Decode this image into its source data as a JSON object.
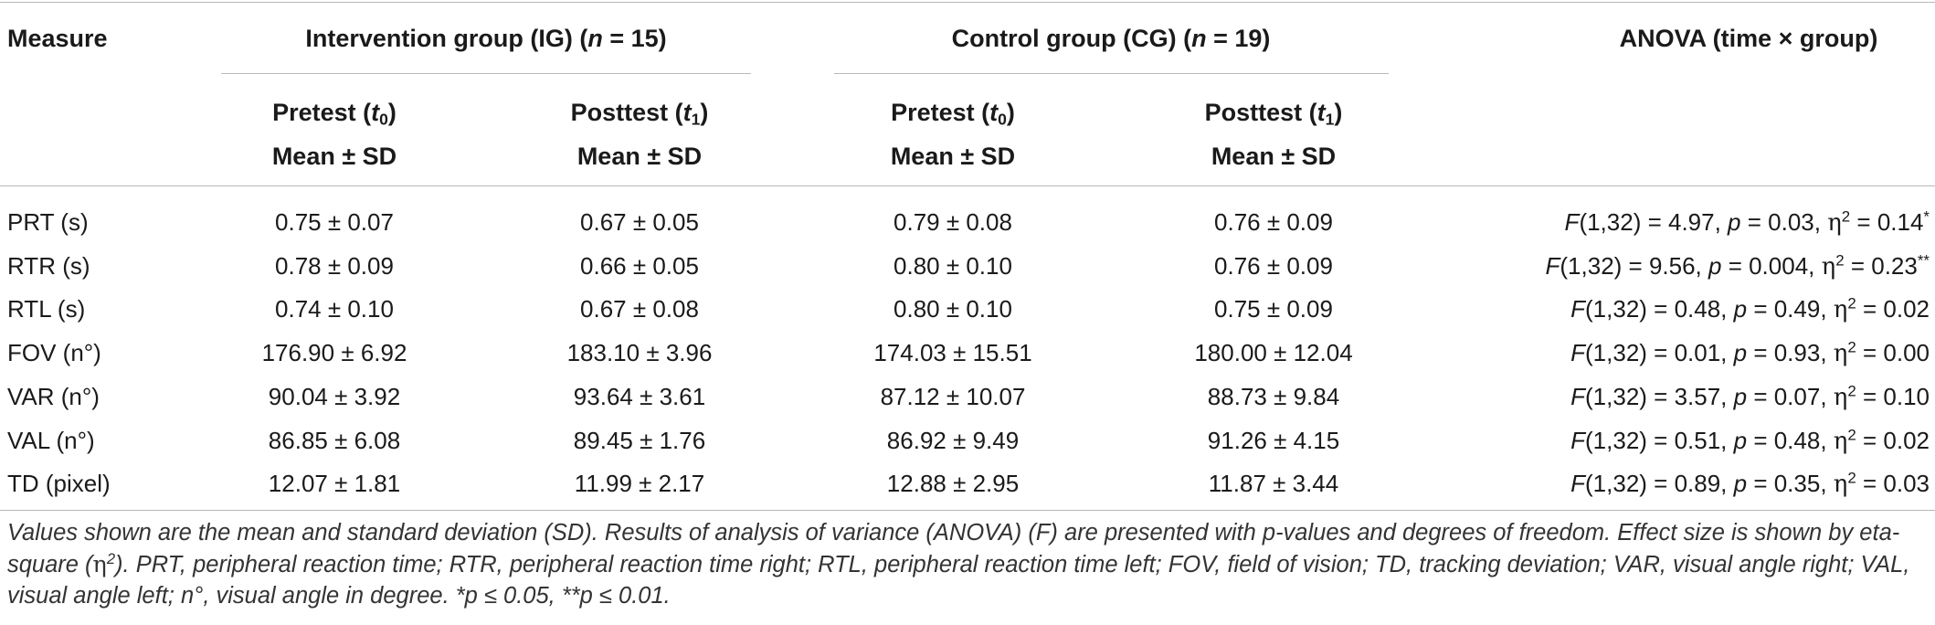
{
  "header": {
    "measure": "Measure",
    "ig_group": {
      "label": "Intervention group (IG) (",
      "n_label": "n",
      "n_value": " = 15)"
    },
    "cg_group": {
      "label": "Control group (CG) (",
      "n_label": "n",
      "n_value": " = 19)"
    },
    "anova": "ANOVA (time × group)",
    "pretest": {
      "label": "Pretest (",
      "t": "t",
      "sub": "0",
      "close": ")"
    },
    "posttest": {
      "label": "Posttest (",
      "t": "t",
      "sub": "1",
      "close": ")"
    },
    "stat": "Mean ± SD"
  },
  "rows": [
    {
      "measure": "PRT (s)",
      "ig_pre": "0.75 ± 0.07",
      "ig_post": "0.67 ± 0.05",
      "cg_pre": "0.79 ± 0.08",
      "cg_post": "0.76 ± 0.09",
      "anova": {
        "f_label": "F",
        "f": "(1,32) = 4.97, ",
        "p_label": "p",
        "p": " = 0.03, ",
        "eta": "η",
        "eta_sup": "2",
        "eta_val": " = 0.14",
        "sig": "*"
      }
    },
    {
      "measure": "RTR (s)",
      "ig_pre": "0.78 ± 0.09",
      "ig_post": "0.66 ± 0.05",
      "cg_pre": "0.80 ± 0.10",
      "cg_post": "0.76 ± 0.09",
      "anova": {
        "f_label": "F",
        "f": "(1,32) = 9.56, ",
        "p_label": "p",
        "p": " = 0.004, ",
        "eta": "η",
        "eta_sup": "2",
        "eta_val": " = 0.23",
        "sig": "**"
      }
    },
    {
      "measure": "RTL (s)",
      "ig_pre": "0.74 ± 0.10",
      "ig_post": "0.67 ± 0.08",
      "cg_pre": "0.80 ± 0.10",
      "cg_post": "0.75 ± 0.09",
      "anova": {
        "f_label": "F",
        "f": "(1,32) = 0.48, ",
        "p_label": "p",
        "p": " = 0.49, ",
        "eta": "η",
        "eta_sup": "2",
        "eta_val": " = 0.02",
        "sig": ""
      }
    },
    {
      "measure": "FOV (n°)",
      "ig_pre": "176.90 ± 6.92",
      "ig_post": "183.10 ± 3.96",
      "cg_pre": "174.03 ± 15.51",
      "cg_post": "180.00 ± 12.04",
      "anova": {
        "f_label": "F",
        "f": "(1,32) = 0.01, ",
        "p_label": "p",
        "p": " = 0.93, ",
        "eta": "η",
        "eta_sup": "2",
        "eta_val": " = 0.00",
        "sig": ""
      }
    },
    {
      "measure": "VAR (n°)",
      "ig_pre": "90.04 ± 3.92",
      "ig_post": "93.64 ± 3.61",
      "cg_pre": "87.12 ± 10.07",
      "cg_post": "88.73 ± 9.84",
      "anova": {
        "f_label": "F",
        "f": "(1,32) = 3.57, ",
        "p_label": "p",
        "p": " = 0.07, ",
        "eta": "η",
        "eta_sup": "2",
        "eta_val": " = 0.10",
        "sig": ""
      }
    },
    {
      "measure": "VAL (n°)",
      "ig_pre": "86.85 ± 6.08",
      "ig_post": "89.45 ± 1.76",
      "cg_pre": "86.92 ± 9.49",
      "cg_post": "91.26 ± 4.15",
      "anova": {
        "f_label": "F",
        "f": "(1,32) = 0.51, ",
        "p_label": "p",
        "p": " = 0.48, ",
        "eta": "η",
        "eta_sup": "2",
        "eta_val": " = 0.02",
        "sig": ""
      }
    },
    {
      "measure": "TD (pixel)",
      "ig_pre": "12.07 ± 1.81",
      "ig_post": "11.99 ± 2.17",
      "cg_pre": "12.88 ± 2.95",
      "cg_post": "11.87 ± 3.44",
      "anova": {
        "f_label": "F",
        "f": "(1,32) = 0.89, ",
        "p_label": "p",
        "p": " = 0.35, ",
        "eta": "η",
        "eta_sup": "2",
        "eta_val": " = 0.03",
        "sig": ""
      }
    }
  ],
  "footnote": {
    "part1": "Values shown are the mean and standard deviation (SD). Results of analysis of variance (ANOVA) (F) are presented with p-values and degrees of freedom. Effect size is shown by eta-square (",
    "eta": "η",
    "eta_sup": "2",
    "part2": "). PRT, peripheral reaction time; RTR, peripheral reaction time right; RTL, peripheral reaction time left; FOV, field of vision; TD, tracking deviation; VAR, visual angle right; VAL, visual angle left; n°, visual angle in degree. *p ≤ 0.05, **p ≤ 0.01."
  }
}
